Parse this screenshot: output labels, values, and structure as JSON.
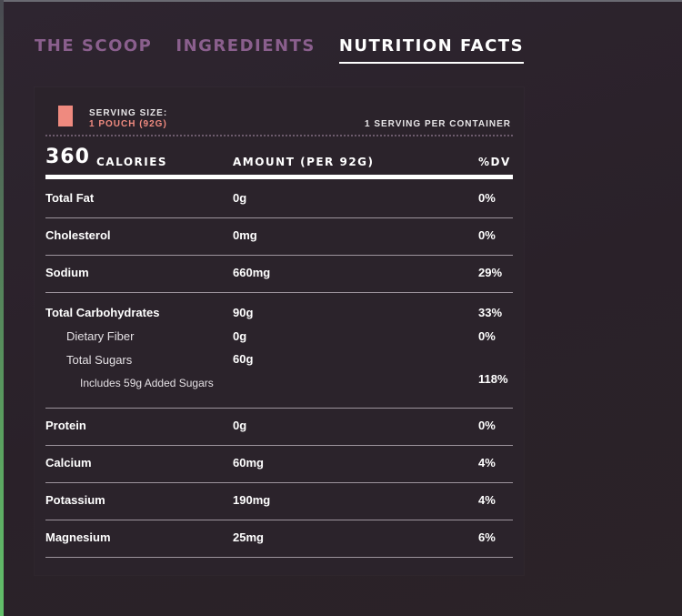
{
  "tabs": [
    {
      "label": "THE SCOOP",
      "active": false
    },
    {
      "label": "INGREDIENTS",
      "active": false
    },
    {
      "label": "NUTRITION FACTS",
      "active": true
    }
  ],
  "serving": {
    "label": "SERVING SIZE:",
    "value": "1 POUCH (92G)",
    "per_container": "1 SERVING PER CONTAINER"
  },
  "header": {
    "calories_value": "360",
    "calories_label": "CALORIES",
    "amount_label": "AMOUNT (PER 92G)",
    "dv_label": "%DV"
  },
  "nutrients": {
    "total_fat": {
      "name": "Total Fat",
      "amount": "0g",
      "dv": "0%"
    },
    "cholesterol": {
      "name": "Cholesterol",
      "amount": "0mg",
      "dv": "0%"
    },
    "sodium": {
      "name": "Sodium",
      "amount": "660mg",
      "dv": "29%"
    },
    "total_carbs": {
      "name": "Total Carbohydrates",
      "amount": "90g",
      "dv": "33%"
    },
    "dietary_fiber": {
      "name": "Dietary Fiber",
      "amount": "0g",
      "dv": "0%"
    },
    "total_sugars": {
      "name": "Total Sugars",
      "amount": "60g"
    },
    "added_sugars": {
      "name": "Includes 59g Added Sugars",
      "dv": "118%"
    },
    "protein": {
      "name": "Protein",
      "amount": "0g",
      "dv": "0%"
    },
    "calcium": {
      "name": "Calcium",
      "amount": "60mg",
      "dv": "4%"
    },
    "potassium": {
      "name": "Potassium",
      "amount": "190mg",
      "dv": "4%"
    },
    "magnesium": {
      "name": "Magnesium",
      "amount": "25mg",
      "dv": "6%"
    }
  },
  "colors": {
    "background": "#2b232b",
    "tab_inactive": "#8a5f8d",
    "accent_pouch": "#ef8a7f"
  }
}
